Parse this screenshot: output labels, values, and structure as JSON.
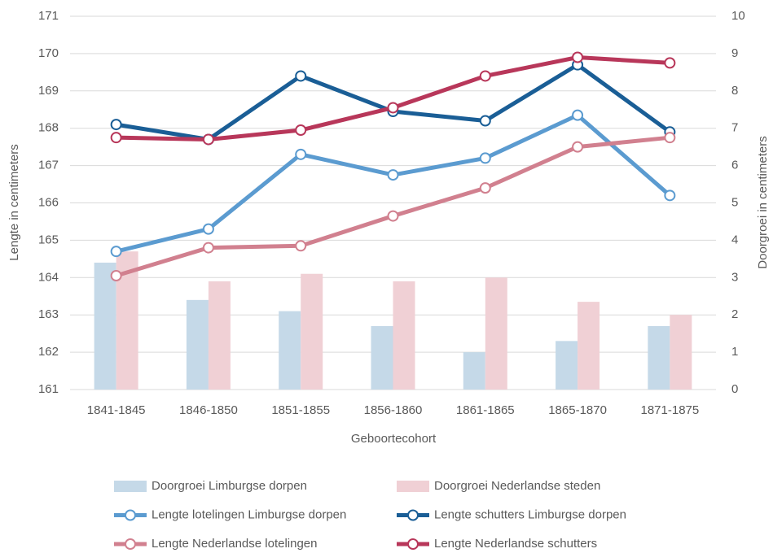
{
  "chart_data": {
    "type": "combo",
    "categories": [
      "1841-1845",
      "1846-1850",
      "1851-1855",
      "1856-1860",
      "1861-1865",
      "1865-1870",
      "1871-1875"
    ],
    "x_label": "Geboortecohort",
    "y_label": "Lengte in centimeters",
    "y2_label": "Doorgroei in centimeters",
    "ylim": [
      161,
      171
    ],
    "yticks": [
      161,
      162,
      163,
      164,
      165,
      166,
      167,
      168,
      169,
      170,
      171
    ],
    "y2lim": [
      0,
      10
    ],
    "y2ticks": [
      0,
      1,
      2,
      3,
      4,
      5,
      6,
      7,
      8,
      9,
      10
    ],
    "grid": true,
    "legend": "bottom",
    "series": [
      {
        "name": "Doorgroei Limburgse dorpen",
        "type": "bar",
        "axis": "y2",
        "color": "#c5d9e8",
        "values": [
          3.4,
          2.4,
          2.1,
          1.7,
          1.0,
          1.3,
          1.7
        ]
      },
      {
        "name": "Doorgroei Nederlandse steden",
        "type": "bar",
        "axis": "y2",
        "color": "#f0d0d5",
        "values": [
          3.7,
          2.9,
          3.1,
          2.9,
          3.0,
          2.35,
          2.0
        ]
      },
      {
        "name": "Lengte lotelingen Limburgse dorpen",
        "type": "line",
        "color": "#5b9bd0",
        "values": [
          164.7,
          165.3,
          167.3,
          166.75,
          167.2,
          168.35,
          166.2
        ]
      },
      {
        "name": "Lengte schutters Limburgse dorpen",
        "type": "line",
        "color": "#1a5e96",
        "values": [
          168.1,
          167.7,
          169.4,
          168.45,
          168.2,
          169.7,
          167.9
        ]
      },
      {
        "name": "Lengte Nederlandse lotelingen",
        "type": "line",
        "color": "#d1808f",
        "values": [
          164.05,
          164.8,
          164.85,
          165.65,
          166.4,
          167.5,
          167.75
        ]
      },
      {
        "name": "Lengte Nederlandse schutters",
        "type": "line",
        "color": "#b8375a",
        "values": [
          167.75,
          167.7,
          167.95,
          168.55,
          169.4,
          169.9,
          169.75
        ]
      }
    ]
  }
}
